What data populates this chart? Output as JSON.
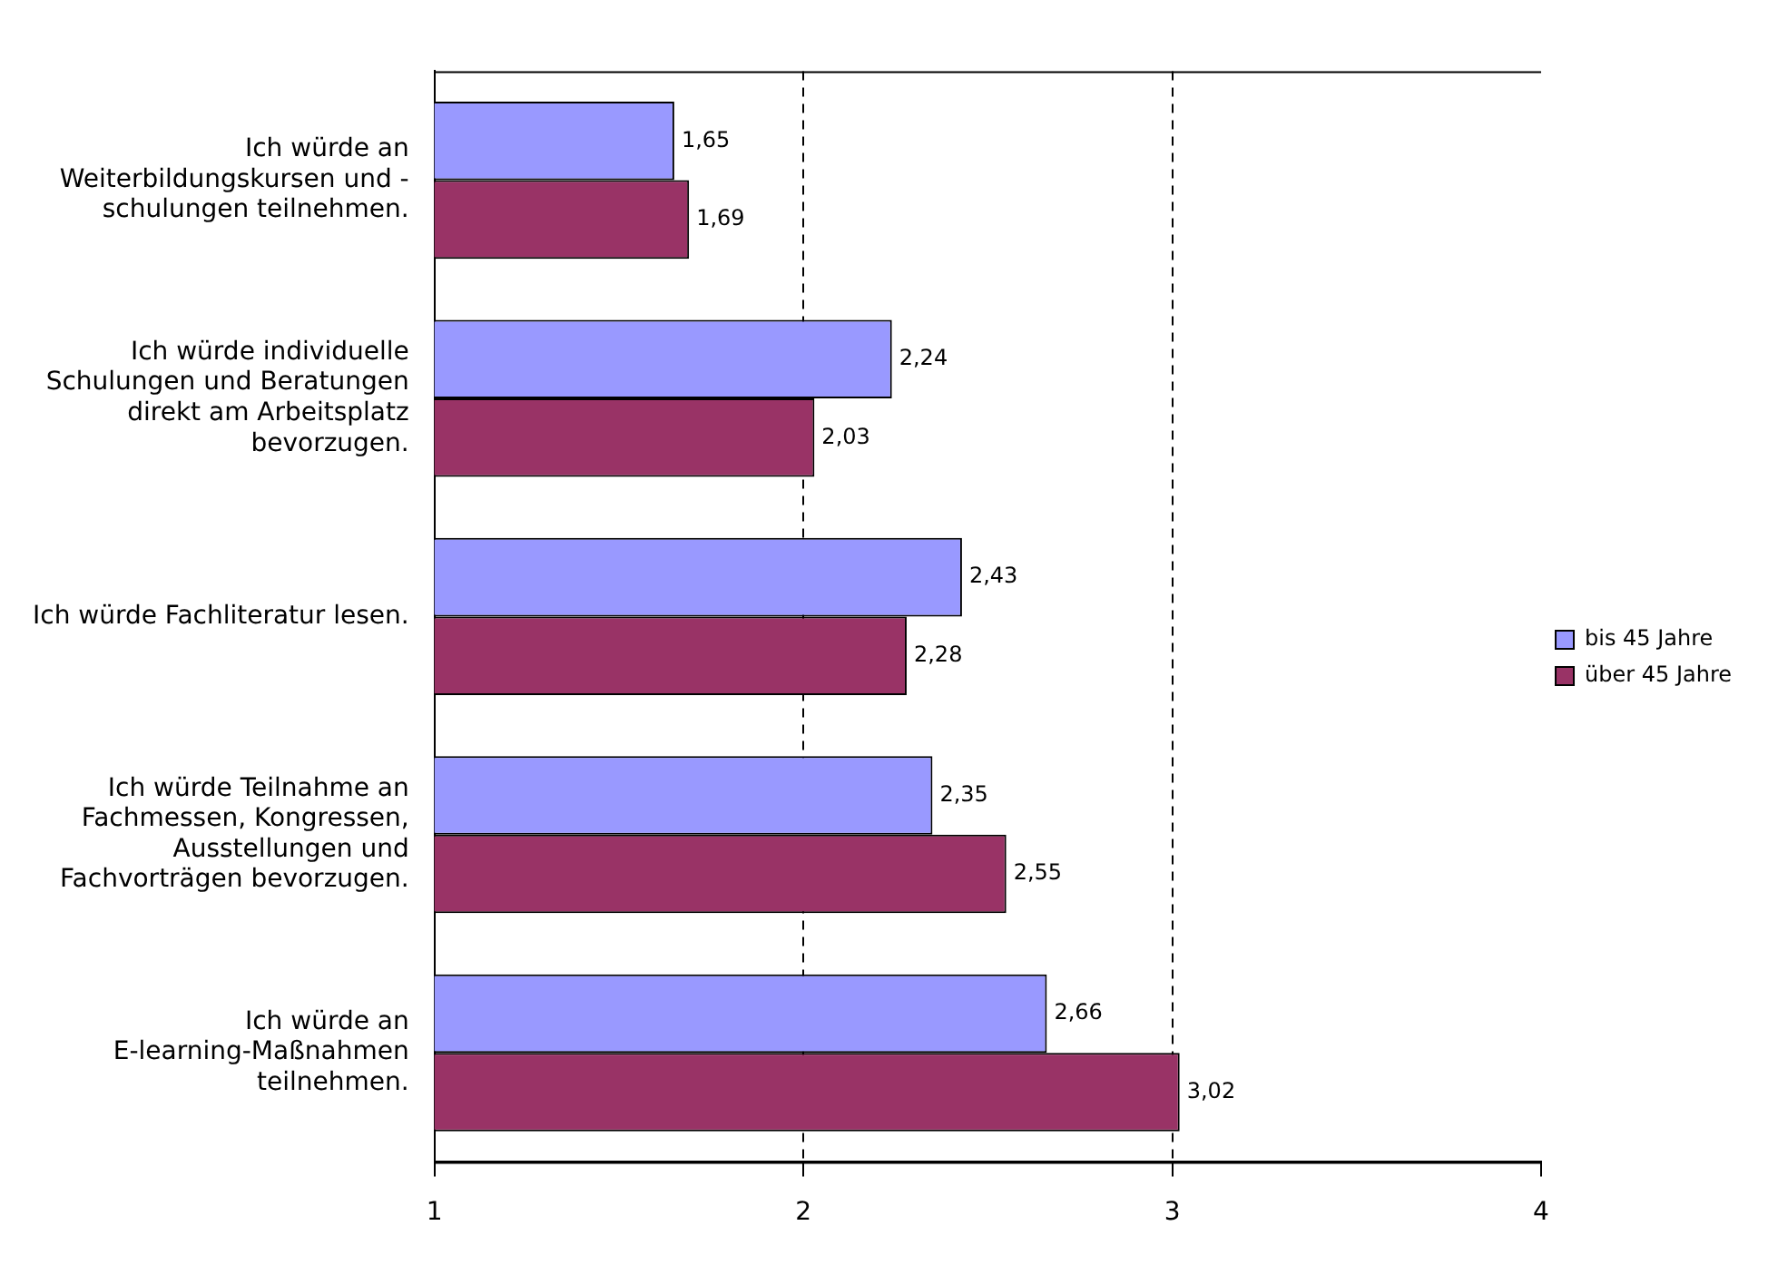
{
  "chart_data": {
    "type": "bar",
    "orientation": "horizontal",
    "categories": [
      "Ich würde an Weiterbildungskursen und - schulungen teilnehmen.",
      "Ich würde individuelle Schulungen und Beratungen direkt am Arbeitsplatz bevorzugen.",
      "Ich würde Fachliteratur lesen.",
      "Ich würde Teilnahme an Fachmessen, Kongressen, Ausstellungen und Fachvorträgen bevorzugen.",
      "Ich würde an E-learning-Maßnahmen teilnehmen."
    ],
    "series": [
      {
        "name": "bis 45 Jahre",
        "color": "#9999ff",
        "values": [
          1.65,
          2.24,
          2.43,
          2.35,
          2.66
        ],
        "value_labels": [
          "1,65",
          "2,24",
          "2,43",
          "2,35",
          "2,66"
        ]
      },
      {
        "name": "über 45 Jahre",
        "color": "#993366",
        "values": [
          1.69,
          2.03,
          2.28,
          2.55,
          3.02
        ],
        "value_labels": [
          "1,69",
          "2,03",
          "2,28",
          "2,55",
          "3,02"
        ]
      }
    ],
    "xlim": [
      1,
      4
    ],
    "xticks": [
      1,
      2,
      3,
      4
    ],
    "grid": "x",
    "line_style": "dashed",
    "legend": "right"
  }
}
